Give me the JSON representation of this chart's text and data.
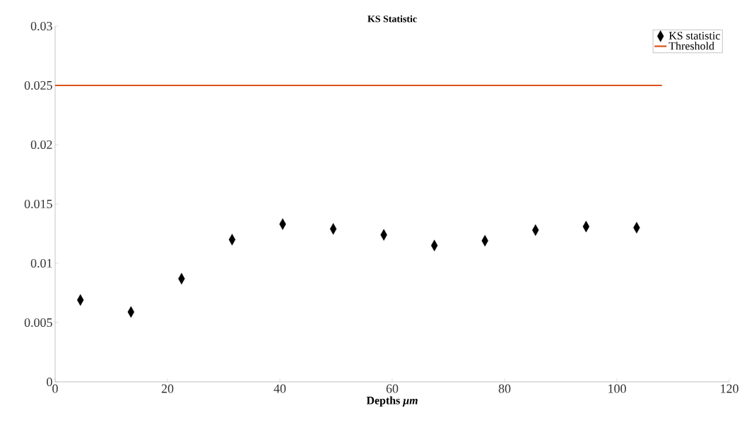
{
  "chart_data": {
    "type": "scatter",
    "title": "KS Statistic",
    "xlabel": "Depths  *μm*",
    "xlim": [
      0,
      120
    ],
    "xticks": [
      0,
      20,
      40,
      60,
      80,
      100,
      120
    ],
    "ylim": [
      0,
      0.03
    ],
    "yticks": [
      0,
      0.005,
      0.01,
      0.015,
      0.02,
      0.025,
      0.03
    ],
    "legend": "top right",
    "grid": false,
    "series": [
      {
        "name": "KS statistic",
        "marker": "diamond",
        "color": "#000000",
        "x": [
          4.5,
          13.5,
          22.5,
          31.5,
          40.5,
          49.5,
          58.5,
          67.5,
          76.5,
          85.5,
          94.5,
          103.5
        ],
        "values": [
          0.0069,
          0.0059,
          0.0087,
          0.012,
          0.0133,
          0.0129,
          0.0124,
          0.0115,
          0.0119,
          0.0128,
          0.0131,
          0.013
        ]
      },
      {
        "name": "Threshold",
        "type": "line",
        "marker": "none",
        "line_style": "solid",
        "color": "#d95319",
        "x": [
          0,
          108
        ],
        "values": [
          0.025,
          0.025
        ]
      }
    ]
  }
}
